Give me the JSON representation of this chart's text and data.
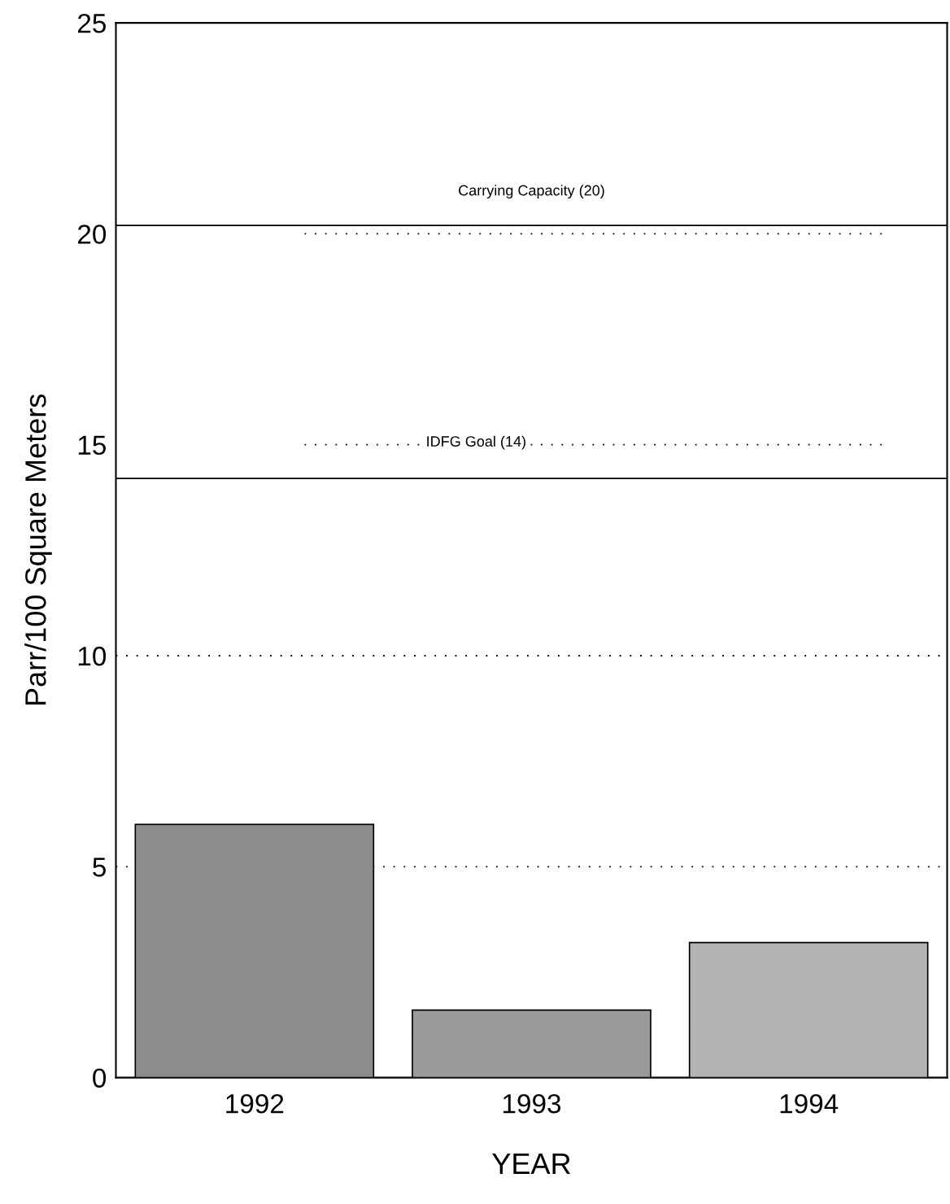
{
  "chart_data": {
    "type": "bar",
    "xlabel": "YEAR",
    "ylabel": "Parr/100 Square Meters",
    "categories": [
      "1992",
      "1993",
      "1994"
    ],
    "values": [
      6.0,
      1.6,
      3.2
    ],
    "colors": [
      "#8c8c8c",
      "#9a9a9a",
      "#b4b4b4"
    ],
    "ylim": [
      0,
      25
    ],
    "yticks": [
      0,
      5,
      10,
      15,
      20,
      25
    ],
    "grid": false,
    "ref_lines": [
      {
        "axis": "y",
        "value": 20,
        "label": "Carrying Capacity (20)",
        "line_style": "dotted",
        "color": "#000000"
      },
      {
        "axis": "y",
        "value": 15,
        "label": "IDFG Goal (14)",
        "line_style": "dotted",
        "color": "#000000"
      },
      {
        "axis": "y",
        "value": 10,
        "line_style": "dotted",
        "color": "#000000"
      },
      {
        "axis": "y",
        "value": 5,
        "line_style": "dotted",
        "color": "#000000"
      },
      {
        "axis": "y",
        "value": 20.2,
        "line_style": "solid",
        "color": "#000000"
      },
      {
        "axis": "y",
        "value": 14.2,
        "line_style": "solid",
        "color": "#000000"
      }
    ]
  }
}
